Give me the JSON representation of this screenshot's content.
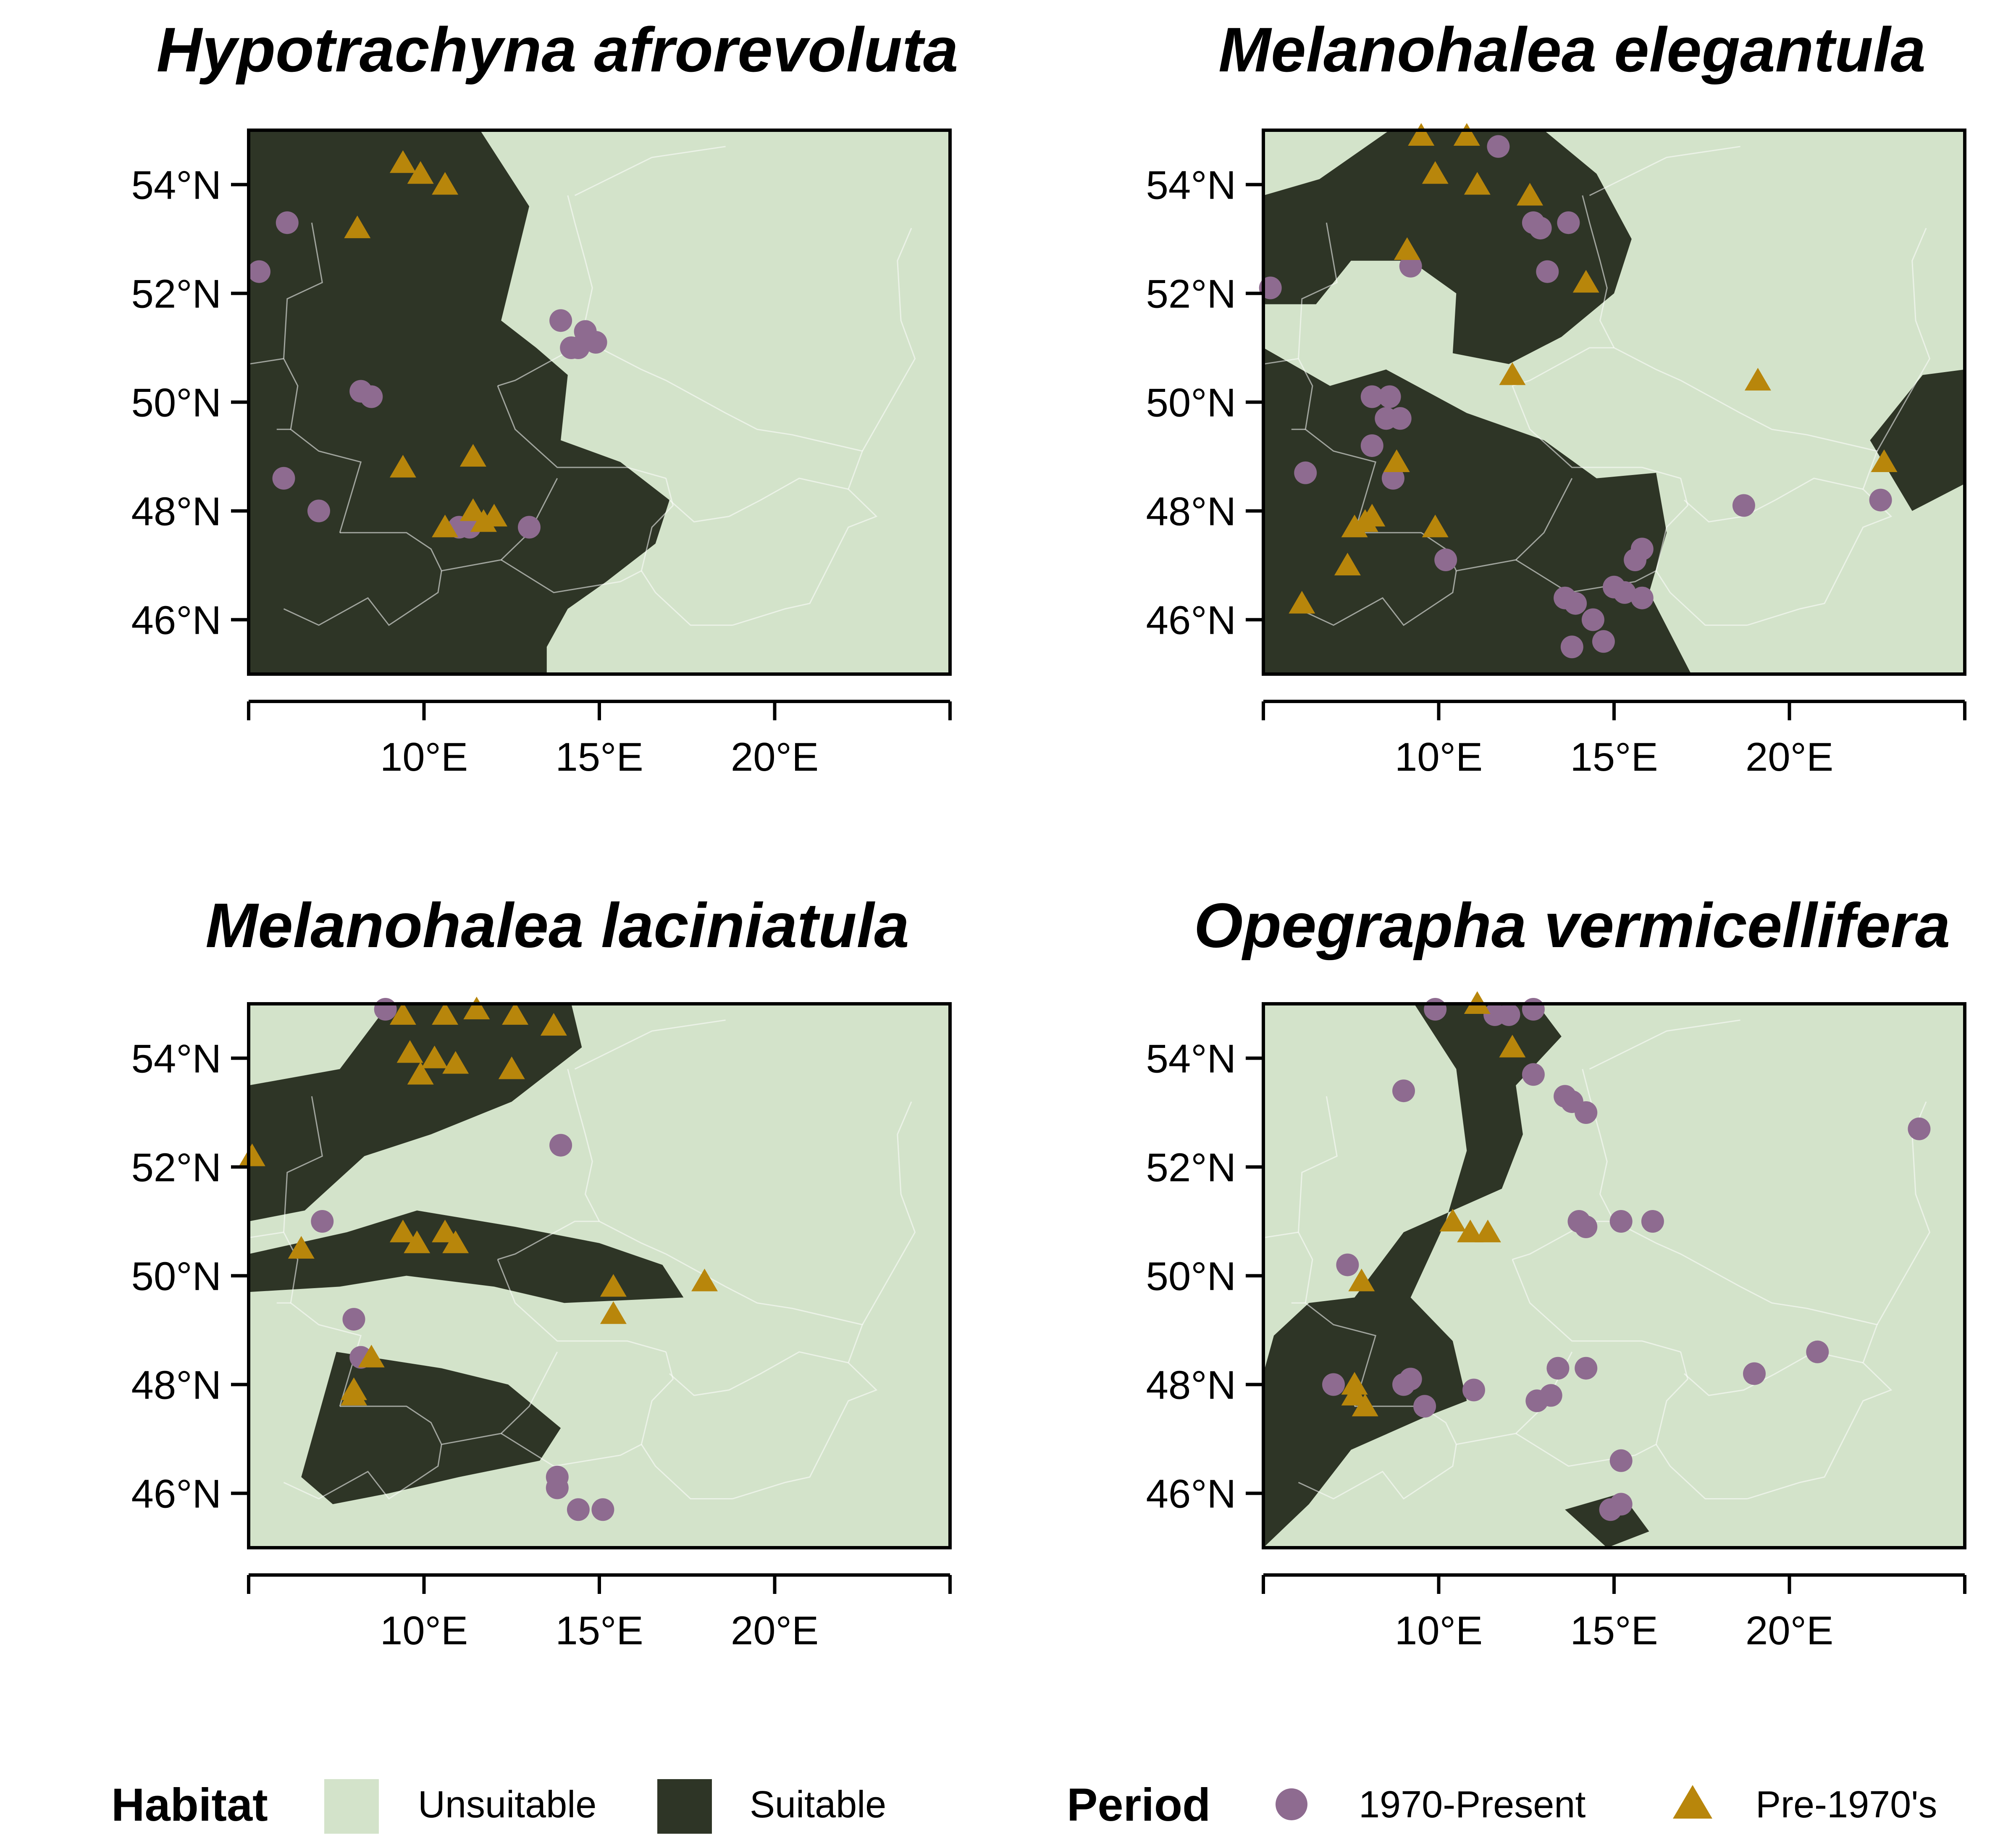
{
  "colors": {
    "unsuitable": "#d3e3ca",
    "suitable": "#2e3526",
    "present": "#8e6b90",
    "pre1970": "#b8860b",
    "border": "#ffffff",
    "frame": "#000000"
  },
  "axes": {
    "lon_range": [
      5,
      25
    ],
    "lat_range": [
      45,
      55
    ],
    "x_ticks": [
      {
        "value": 10,
        "label": "10°E"
      },
      {
        "value": 15,
        "label": "15°E"
      },
      {
        "value": 20,
        "label": "20°E"
      }
    ],
    "y_ticks": [
      {
        "value": 46,
        "label": "46°N"
      },
      {
        "value": 48,
        "label": "48°N"
      },
      {
        "value": 50,
        "label": "50°N"
      },
      {
        "value": 52,
        "label": "52°N"
      },
      {
        "value": 54,
        "label": "54°N"
      }
    ]
  },
  "legend": {
    "habitat_title": "Habitat",
    "unsuitable_label": "Unsuitable",
    "suitable_label": "Suitable",
    "period_title": "Period",
    "present_label": "1970-Present",
    "pre1970_label": "Pre-1970's"
  },
  "chart_data": [
    {
      "type": "scatter",
      "title": "Hypotrachyna afrorevoluta",
      "suitable_regions": [
        [
          [
            5,
            55
          ],
          [
            11.6,
            55
          ],
          [
            13,
            53.6
          ],
          [
            12.2,
            51.5
          ],
          [
            13.2,
            51
          ],
          [
            14.1,
            50.5
          ],
          [
            13.9,
            49.3
          ],
          [
            15.6,
            48.9
          ],
          [
            17,
            48.2
          ],
          [
            16.6,
            47.4
          ],
          [
            15.2,
            46.7
          ],
          [
            14.1,
            46.2
          ],
          [
            13.5,
            45.5
          ],
          [
            13.5,
            45
          ],
          [
            5,
            45
          ]
        ]
      ],
      "series": [
        {
          "period": "present",
          "points": [
            [
              5.3,
              52.4
            ],
            [
              6.1,
              53.3
            ],
            [
              8.2,
              50.2
            ],
            [
              8.5,
              50.1
            ],
            [
              6,
              48.6
            ],
            [
              7,
              48
            ],
            [
              11,
              47.7
            ],
            [
              11.3,
              47.7
            ],
            [
              13,
              47.7
            ],
            [
              13.9,
              51.5
            ],
            [
              14.6,
              51.3
            ],
            [
              14.2,
              51
            ],
            [
              14.4,
              51
            ],
            [
              14.9,
              51.1
            ]
          ]
        },
        {
          "period": "pre1970",
          "points": [
            [
              8.1,
              53.2
            ],
            [
              9.4,
              54.4
            ],
            [
              9.9,
              54.2
            ],
            [
              10.6,
              54
            ],
            [
              9.4,
              48.8
            ],
            [
              11.4,
              49
            ],
            [
              10.6,
              47.7
            ],
            [
              11.4,
              48
            ],
            [
              11.7,
              47.8
            ],
            [
              12,
              47.9
            ]
          ]
        }
      ]
    },
    {
      "type": "scatter",
      "title": "Melanohalea elegantula",
      "suitable_regions": [
        [
          [
            5,
            53.8
          ],
          [
            6.6,
            54.1
          ],
          [
            8.6,
            55
          ],
          [
            13,
            55
          ],
          [
            14.5,
            54.2
          ],
          [
            15.5,
            53
          ],
          [
            15,
            52
          ],
          [
            13.5,
            51.2
          ],
          [
            12,
            50.7
          ],
          [
            10.4,
            50.9
          ],
          [
            10.5,
            52
          ],
          [
            9.2,
            52.6
          ],
          [
            7.5,
            52.6
          ],
          [
            6.5,
            51.8
          ],
          [
            5,
            51.8
          ]
        ],
        [
          [
            5,
            51
          ],
          [
            6.9,
            50.3
          ],
          [
            8.5,
            50.6
          ],
          [
            10.8,
            49.8
          ],
          [
            13,
            49.3
          ],
          [
            14.5,
            48.6
          ],
          [
            16.2,
            48.7
          ],
          [
            16.5,
            47.6
          ],
          [
            16,
            46.5
          ],
          [
            17.2,
            45
          ],
          [
            5,
            45
          ]
        ],
        [
          [
            22.3,
            49.3
          ],
          [
            23.8,
            50.5
          ],
          [
            25,
            50.6
          ],
          [
            25,
            48.5
          ],
          [
            23.5,
            48
          ]
        ]
      ],
      "series": [
        {
          "period": "present",
          "points": [
            [
              5.2,
              52.1
            ],
            [
              11.7,
              54.7
            ],
            [
              12.7,
              53.3
            ],
            [
              12.9,
              53.2
            ],
            [
              13.7,
              53.3
            ],
            [
              9.2,
              52.5
            ],
            [
              13.1,
              52.4
            ],
            [
              8.1,
              50.1
            ],
            [
              8.6,
              50.1
            ],
            [
              8.5,
              49.7
            ],
            [
              8.9,
              49.7
            ],
            [
              8.1,
              49.2
            ],
            [
              6.2,
              48.7
            ],
            [
              8.7,
              48.6
            ],
            [
              10.2,
              47.1
            ],
            [
              13.6,
              46.4
            ],
            [
              13.9,
              46.3
            ],
            [
              14.4,
              46
            ],
            [
              14.7,
              45.6
            ],
            [
              13.8,
              45.5
            ],
            [
              15,
              46.6
            ],
            [
              15.3,
              46.5
            ],
            [
              15.8,
              46.4
            ],
            [
              15.6,
              47.1
            ],
            [
              15.8,
              47.3
            ],
            [
              18.7,
              48.1
            ],
            [
              22.6,
              48.2
            ]
          ]
        },
        {
          "period": "pre1970",
          "points": [
            [
              9.5,
              54.9
            ],
            [
              10.8,
              54.9
            ],
            [
              9.9,
              54.2
            ],
            [
              11.1,
              54
            ],
            [
              12.6,
              53.8
            ],
            [
              9.1,
              52.8
            ],
            [
              14.2,
              52.2
            ],
            [
              12.1,
              50.5
            ],
            [
              19.1,
              50.4
            ],
            [
              22.7,
              48.9
            ],
            [
              8.8,
              48.9
            ],
            [
              8.1,
              47.9
            ],
            [
              7.9,
              47.8
            ],
            [
              7.6,
              47.7
            ],
            [
              9.9,
              47.7
            ],
            [
              7.4,
              47
            ],
            [
              6.1,
              46.3
            ]
          ]
        }
      ]
    },
    {
      "type": "scatter",
      "title": "Melanohalea laciniatula",
      "suitable_regions": [
        [
          [
            5,
            53.5
          ],
          [
            7.6,
            53.8
          ],
          [
            9,
            55
          ],
          [
            14.2,
            55
          ],
          [
            14.5,
            54.2
          ],
          [
            12.5,
            53.2
          ],
          [
            10.2,
            52.6
          ],
          [
            8.3,
            52.2
          ],
          [
            6.6,
            51.2
          ],
          [
            5,
            51
          ]
        ],
        [
          [
            5,
            50.4
          ],
          [
            7.8,
            50.8
          ],
          [
            9.8,
            51.2
          ],
          [
            12.6,
            50.9
          ],
          [
            15,
            50.6
          ],
          [
            16.8,
            50.2
          ],
          [
            17.4,
            49.6
          ],
          [
            14,
            49.5
          ],
          [
            12,
            49.8
          ],
          [
            9.5,
            50
          ],
          [
            7.6,
            49.8
          ],
          [
            5,
            49.7
          ]
        ],
        [
          [
            7.5,
            48.6
          ],
          [
            10.5,
            48.3
          ],
          [
            12.4,
            48
          ],
          [
            13.9,
            47.2
          ],
          [
            13.3,
            46.6
          ],
          [
            11,
            46.3
          ],
          [
            9,
            46
          ],
          [
            7.4,
            45.8
          ],
          [
            6.5,
            46.3
          ]
        ]
      ],
      "series": [
        {
          "period": "present",
          "points": [
            [
              13.9,
              52.4
            ],
            [
              7.1,
              51
            ],
            [
              8,
              49.2
            ],
            [
              8.2,
              48.5
            ],
            [
              8.9,
              54.9
            ],
            [
              13.8,
              46.3
            ],
            [
              13.8,
              46.1
            ],
            [
              14.4,
              45.7
            ],
            [
              15.1,
              45.7
            ]
          ]
        },
        {
          "period": "pre1970",
          "points": [
            [
              5.1,
              52.2
            ],
            [
              6.5,
              50.5
            ],
            [
              9.4,
              54.8
            ],
            [
              10.6,
              54.8
            ],
            [
              11.5,
              54.9
            ],
            [
              12.6,
              54.8
            ],
            [
              13.7,
              54.6
            ],
            [
              9.6,
              54.1
            ],
            [
              10.3,
              54
            ],
            [
              10.9,
              53.9
            ],
            [
              9.9,
              53.7
            ],
            [
              12.5,
              53.8
            ],
            [
              9.4,
              50.8
            ],
            [
              9.8,
              50.6
            ],
            [
              10.6,
              50.8
            ],
            [
              10.9,
              50.6
            ],
            [
              15.4,
              49.8
            ],
            [
              15.4,
              49.3
            ],
            [
              18,
              49.9
            ],
            [
              8.5,
              48.5
            ],
            [
              8,
              47.9
            ],
            [
              8,
              47.8
            ]
          ]
        }
      ]
    },
    {
      "type": "scatter",
      "title": "Opegrapha vermicellifera",
      "suitable_regions": [
        [
          [
            9.3,
            55
          ],
          [
            12.8,
            55
          ],
          [
            13.5,
            54.4
          ],
          [
            12.2,
            53.5
          ],
          [
            12.4,
            52.6
          ],
          [
            11.8,
            51.6
          ],
          [
            10.4,
            51.2
          ],
          [
            9,
            50.8
          ],
          [
            8.3,
            50.2
          ],
          [
            7.6,
            49.6
          ],
          [
            6.3,
            49.5
          ],
          [
            5.3,
            48.9
          ],
          [
            5,
            48.2
          ],
          [
            5,
            45
          ],
          [
            6.3,
            45.8
          ],
          [
            7.5,
            46.8
          ],
          [
            9.6,
            47.4
          ],
          [
            10.8,
            47.7
          ],
          [
            10.4,
            48.8
          ],
          [
            9.2,
            49.6
          ],
          [
            10.2,
            51
          ],
          [
            10.8,
            52.3
          ],
          [
            10.5,
            53.8
          ]
        ],
        [
          [
            13.6,
            45.7
          ],
          [
            14.8,
            45
          ],
          [
            16,
            45.3
          ],
          [
            15.2,
            46
          ]
        ]
      ],
      "series": [
        {
          "period": "present",
          "points": [
            [
              9.9,
              54.9
            ],
            [
              11.6,
              54.8
            ],
            [
              12,
              54.8
            ],
            [
              12.7,
              54.9
            ],
            [
              12.7,
              53.7
            ],
            [
              13.6,
              53.3
            ],
            [
              13.8,
              53.2
            ],
            [
              14.2,
              53
            ],
            [
              9,
              53.4
            ],
            [
              14,
              51
            ],
            [
              14.2,
              50.9
            ],
            [
              15.2,
              51
            ],
            [
              16.1,
              51
            ],
            [
              23.7,
              52.7
            ],
            [
              7.4,
              50.2
            ],
            [
              7,
              48
            ],
            [
              9,
              48
            ],
            [
              9.2,
              48.1
            ],
            [
              9.6,
              47.6
            ],
            [
              11,
              47.9
            ],
            [
              12.8,
              47.7
            ],
            [
              13.2,
              47.8
            ],
            [
              13.4,
              48.3
            ],
            [
              14.2,
              48.3
            ],
            [
              15.2,
              46.6
            ],
            [
              14.9,
              45.7
            ],
            [
              15.2,
              45.8
            ],
            [
              19,
              48.2
            ],
            [
              20.8,
              48.6
            ]
          ]
        },
        {
          "period": "pre1970",
          "points": [
            [
              11.1,
              55
            ],
            [
              12.1,
              54.2
            ],
            [
              10.4,
              51
            ],
            [
              10.9,
              50.8
            ],
            [
              11.4,
              50.8
            ],
            [
              7.8,
              49.9
            ],
            [
              7.6,
              48
            ],
            [
              7.6,
              47.8
            ],
            [
              7.9,
              47.6
            ]
          ]
        }
      ]
    }
  ]
}
